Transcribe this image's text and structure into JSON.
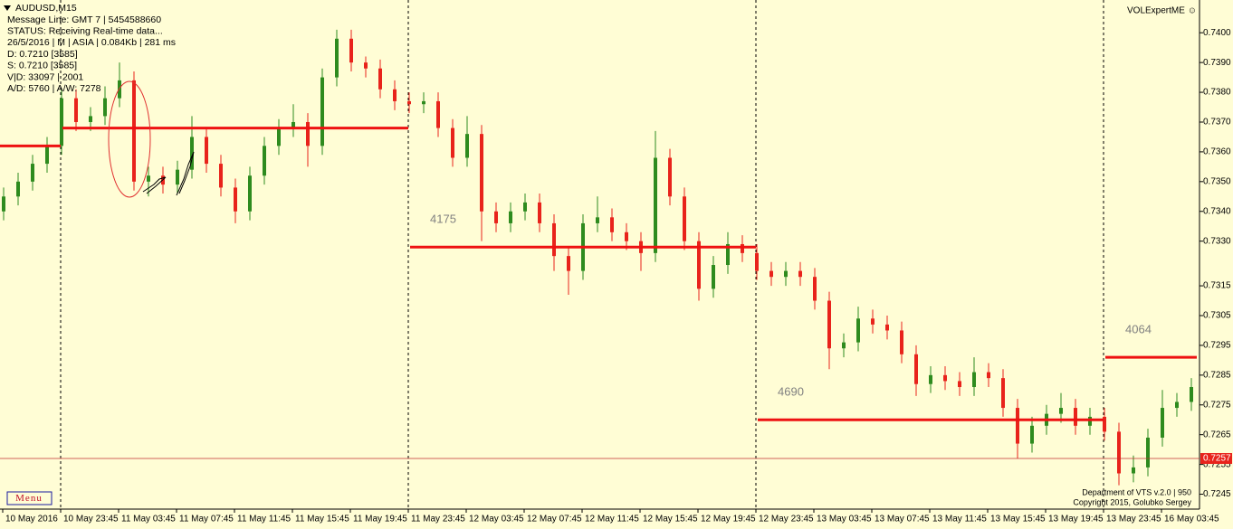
{
  "chart_data": {
    "type": "candlestick",
    "title": "AUDUSD,M15",
    "info_lines": [
      "Message Line: GMT 7 | 5454588660",
      "STATUS:  Receiving Real-time data...",
      "26/5/2016 | M | ASIA | 0.084Kb | 281 ms",
      "D: 0.7210  [3585]",
      "S: 0.7210  [3585]",
      "V|D: 33097 | 2001",
      "A/D: 5760 | A/W: 7278"
    ],
    "brand": "VOLExpertME ☺",
    "footer": [
      "Department of VTS  v.2.0 | 950",
      "Copyright 2015, Golubko Sergey"
    ],
    "menu": "Menu",
    "categories": [
      "10 May 2016",
      null,
      null,
      null,
      "10 May 23:45",
      null,
      null,
      null,
      "11 May 03:45",
      null,
      null,
      null,
      "11 May 07:45",
      null,
      null,
      null,
      "11 May 11:45",
      null,
      null,
      null,
      "11 May 15:45",
      null,
      null,
      null,
      "11 May 19:45",
      null,
      null,
      null,
      "11 May 23:45",
      null,
      null,
      null,
      "12 May 03:45",
      null,
      null,
      null,
      "12 May 07:45",
      null,
      null,
      null,
      "12 May 11:45",
      null,
      null,
      null,
      "12 May 15:45",
      null,
      null,
      null,
      "12 May 19:45",
      null,
      null,
      null,
      "12 May 23:45",
      null,
      null,
      null,
      "13 May 03:45",
      null,
      null,
      null,
      "13 May 07:45",
      null,
      null,
      null,
      "13 May 11:45",
      null,
      null,
      null,
      "13 May 15:45",
      null,
      null,
      null,
      "13 May 19:45",
      null,
      null,
      null,
      "13 May 23:45",
      null,
      null,
      null,
      "16 May 03:45",
      null,
      null,
      null
    ],
    "open": [
      0.734,
      0.7345,
      0.735,
      0.7356,
      0.7362,
      0.7378,
      0.737,
      0.7372,
      0.7378,
      0.7384,
      0.735,
      0.7352,
      0.7349,
      0.7354,
      0.7365,
      0.7356,
      0.7348,
      0.734,
      0.7352,
      0.7362,
      0.7368,
      0.737,
      0.7362,
      0.7385,
      0.7398,
      0.739,
      0.7388,
      0.7381,
      0.7377,
      0.7376,
      0.7377,
      0.7368,
      0.7358,
      0.7366,
      0.734,
      0.7336,
      0.734,
      0.7343,
      0.7336,
      0.7325,
      0.732,
      0.7336,
      0.7338,
      0.7333,
      0.733,
      0.7326,
      0.7358,
      0.7345,
      0.733,
      0.7314,
      0.7322,
      0.7329,
      0.7326,
      0.732,
      0.7318,
      0.732,
      0.7318,
      0.731,
      0.7294,
      0.7296,
      0.7304,
      0.7302,
      0.73,
      0.7292,
      0.7282,
      0.7285,
      0.7283,
      0.7281,
      0.7286,
      0.7284,
      0.7274,
      0.7262,
      0.7268,
      0.7272,
      0.7274,
      0.7268,
      0.7271,
      0.7266,
      0.7252,
      0.7254,
      0.7264,
      0.7274,
      0.7276,
      0.7281
    ],
    "high": [
      0.7348,
      0.7353,
      0.7359,
      0.7365,
      0.7381,
      0.7381,
      0.7375,
      0.7382,
      0.739,
      0.7387,
      0.7355,
      0.7355,
      0.7357,
      0.7372,
      0.7368,
      0.7359,
      0.7351,
      0.7355,
      0.7365,
      0.7371,
      0.7376,
      0.7373,
      0.7388,
      0.7401,
      0.7401,
      0.7392,
      0.7391,
      0.7384,
      0.738,
      0.738,
      0.738,
      0.7371,
      0.7372,
      0.7369,
      0.7343,
      0.7343,
      0.7346,
      0.7346,
      0.7339,
      0.7328,
      0.7339,
      0.7345,
      0.7341,
      0.7336,
      0.7333,
      0.7367,
      0.7361,
      0.7348,
      0.7333,
      0.7325,
      0.7333,
      0.7332,
      0.7329,
      0.7323,
      0.7323,
      0.7323,
      0.7321,
      0.7313,
      0.7299,
      0.7308,
      0.7307,
      0.7305,
      0.7303,
      0.7295,
      0.7288,
      0.7288,
      0.7286,
      0.7291,
      0.7289,
      0.7287,
      0.7277,
      0.7271,
      0.7275,
      0.7279,
      0.7277,
      0.7274,
      0.7274,
      0.7269,
      0.7258,
      0.7267,
      0.728,
      0.7279,
      0.7284,
      0.7291
    ],
    "low": [
      0.7337,
      0.7342,
      0.7347,
      0.7353,
      0.7359,
      0.7367,
      0.7367,
      0.7369,
      0.7375,
      0.7347,
      0.7345,
      0.7346,
      0.7346,
      0.7351,
      0.7353,
      0.7345,
      0.7336,
      0.7337,
      0.7349,
      0.7359,
      0.7365,
      0.7355,
      0.7359,
      0.7382,
      0.7387,
      0.7385,
      0.7378,
      0.7374,
      0.7373,
      0.7373,
      0.7365,
      0.7355,
      0.7355,
      0.733,
      0.7333,
      0.7333,
      0.7337,
      0.7333,
      0.732,
      0.7312,
      0.7317,
      0.7333,
      0.733,
      0.7327,
      0.732,
      0.7323,
      0.7342,
      0.7327,
      0.731,
      0.7311,
      0.7319,
      0.7323,
      0.7317,
      0.7315,
      0.7315,
      0.7315,
      0.7307,
      0.7287,
      0.7291,
      0.7293,
      0.7299,
      0.7297,
      0.7289,
      0.7278,
      0.7279,
      0.728,
      0.7278,
      0.7278,
      0.7281,
      0.7271,
      0.7257,
      0.7259,
      0.7265,
      0.7269,
      0.7265,
      0.7265,
      0.7263,
      0.7248,
      0.7249,
      0.7251,
      0.7261,
      0.7271,
      0.7273,
      0.7278
    ],
    "close": [
      0.7345,
      0.735,
      0.7356,
      0.7362,
      0.7378,
      0.737,
      0.7372,
      0.7378,
      0.7384,
      0.735,
      0.7352,
      0.7349,
      0.7354,
      0.7365,
      0.7356,
      0.7348,
      0.734,
      0.7352,
      0.7362,
      0.7368,
      0.737,
      0.7362,
      0.7385,
      0.7398,
      0.739,
      0.7388,
      0.7381,
      0.7377,
      0.7376,
      0.7377,
      0.7368,
      0.7358,
      0.7366,
      0.734,
      0.7336,
      0.734,
      0.7343,
      0.7336,
      0.7325,
      0.732,
      0.7336,
      0.7338,
      0.7333,
      0.733,
      0.7326,
      0.7358,
      0.7345,
      0.733,
      0.7314,
      0.7322,
      0.7329,
      0.7326,
      0.732,
      0.7318,
      0.732,
      0.7318,
      0.731,
      0.7294,
      0.7296,
      0.7304,
      0.7302,
      0.73,
      0.7292,
      0.7282,
      0.7285,
      0.7283,
      0.7281,
      0.7286,
      0.7284,
      0.7274,
      0.7262,
      0.7268,
      0.7272,
      0.7274,
      0.7268,
      0.7271,
      0.7266,
      0.7252,
      0.7254,
      0.7264,
      0.7274,
      0.7276,
      0.7281,
      0.7288
    ],
    "up_color": "#2e8b1e",
    "down_color": "#e8231b",
    "levels": [
      {
        "value": 0.7362
      },
      {
        "value": 0.7368
      },
      {
        "value": 0.7328,
        "label": "4175"
      },
      {
        "value": 0.727,
        "label": "4690"
      },
      {
        "value": 0.7291,
        "label": "4064"
      }
    ],
    "level_color": "#ee1111",
    "current_price": {
      "value": 0.7257,
      "label": "0.7257"
    },
    "ylim": [
      0.724,
      0.7411
    ],
    "yticks": [
      {
        "value": 0.74,
        "label": "0.7400"
      },
      {
        "value": 0.739,
        "label": "0.7390"
      },
      {
        "value": 0.738,
        "label": "0.7380"
      },
      {
        "value": 0.737,
        "label": "0.7370"
      },
      {
        "value": 0.736,
        "label": "0.7360"
      },
      {
        "value": 0.735,
        "label": "0.7350"
      },
      {
        "value": 0.734,
        "label": "0.7340"
      },
      {
        "value": 0.733,
        "label": "0.7330"
      },
      {
        "value": 0.7315,
        "label": "0.7315"
      },
      {
        "value": 0.7305,
        "label": "0.7305"
      },
      {
        "value": 0.7295,
        "label": "0.7295"
      },
      {
        "value": 0.7285,
        "label": "0.7285"
      },
      {
        "value": 0.7275,
        "label": "0.7275"
      },
      {
        "value": 0.7265,
        "label": "0.7265"
      },
      {
        "value": 0.7255,
        "label": "0.7255"
      },
      {
        "value": 0.7245,
        "label": "0.7245"
      }
    ]
  }
}
